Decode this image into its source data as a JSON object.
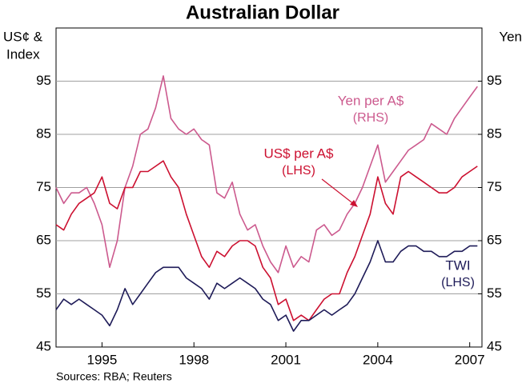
{
  "chart_data": {
    "type": "line",
    "title": "Australian Dollar",
    "y_label": [
      "US¢ &",
      "Index"
    ],
    "y2_label": "Yen",
    "source": "Sources: RBA; Reuters",
    "xlim": [
      1993.5,
      2007.4
    ],
    "xticks": [
      1995,
      1998,
      2001,
      2004,
      2007
    ],
    "ylim": [
      45,
      105
    ],
    "yticks": [
      45,
      55,
      65,
      75,
      85,
      95
    ],
    "y2lim": [
      45,
      105
    ],
    "y2ticks": [
      45,
      55,
      65,
      75,
      85,
      95
    ],
    "grid": true,
    "x": [
      1993.5,
      1993.75,
      1994,
      1994.25,
      1994.5,
      1994.75,
      1995,
      1995.25,
      1995.5,
      1995.75,
      1996,
      1996.25,
      1996.5,
      1996.75,
      1997,
      1997.25,
      1997.5,
      1997.75,
      1998,
      1998.25,
      1998.5,
      1998.75,
      1999,
      1999.25,
      1999.5,
      1999.75,
      2000,
      2000.25,
      2000.5,
      2000.75,
      2001,
      2001.25,
      2001.5,
      2001.75,
      2002,
      2002.25,
      2002.5,
      2002.75,
      2003,
      2003.25,
      2003.5,
      2003.75,
      2004,
      2004.25,
      2004.5,
      2004.75,
      2005,
      2005.25,
      2005.5,
      2005.75,
      2006,
      2006.25,
      2006.5,
      2006.75,
      2007,
      2007.25
    ],
    "series": [
      {
        "name": "Yen per A$",
        "note": "(RHS)",
        "color": "#cc5a8e",
        "axis": "y2",
        "values": [
          75,
          72,
          74,
          74,
          75,
          72,
          68,
          60,
          65,
          75,
          79,
          85,
          86,
          90,
          96,
          88,
          86,
          85,
          86,
          84,
          83,
          74,
          73,
          76,
          70,
          67,
          68,
          64,
          61,
          59,
          64,
          60,
          62,
          61,
          67,
          68,
          66,
          67,
          70,
          72,
          75,
          79,
          83,
          76,
          78,
          80,
          82,
          83,
          84,
          87,
          86,
          85,
          88,
          90,
          92,
          94
        ]
      },
      {
        "name": "US$ per A$",
        "note": "(LHS)",
        "color": "#cc1030",
        "values": [
          68,
          67,
          70,
          72,
          73,
          74,
          77,
          72,
          71,
          75,
          75,
          78,
          78,
          79,
          80,
          77,
          75,
          70,
          66,
          62,
          60,
          63,
          62,
          64,
          65,
          65,
          64,
          60,
          58,
          53,
          54,
          50,
          51,
          50,
          52,
          54,
          55,
          55,
          59,
          62,
          66,
          70,
          77,
          72,
          70,
          77,
          78,
          77,
          76,
          75,
          74,
          74,
          75,
          77,
          78,
          79
        ]
      },
      {
        "name": "TWI",
        "note": "(LHS)",
        "color": "#1e1b58",
        "values": [
          52,
          54,
          53,
          54,
          53,
          52,
          51,
          49,
          52,
          56,
          53,
          55,
          57,
          59,
          60,
          60,
          60,
          58,
          57,
          56,
          54,
          57,
          56,
          57,
          58,
          57,
          56,
          54,
          53,
          50,
          51,
          48,
          50,
          50,
          51,
          52,
          51,
          52,
          53,
          55,
          58,
          61,
          65,
          61,
          61,
          63,
          64,
          64,
          63,
          63,
          62,
          62,
          63,
          63,
          64,
          64
        ]
      }
    ]
  }
}
